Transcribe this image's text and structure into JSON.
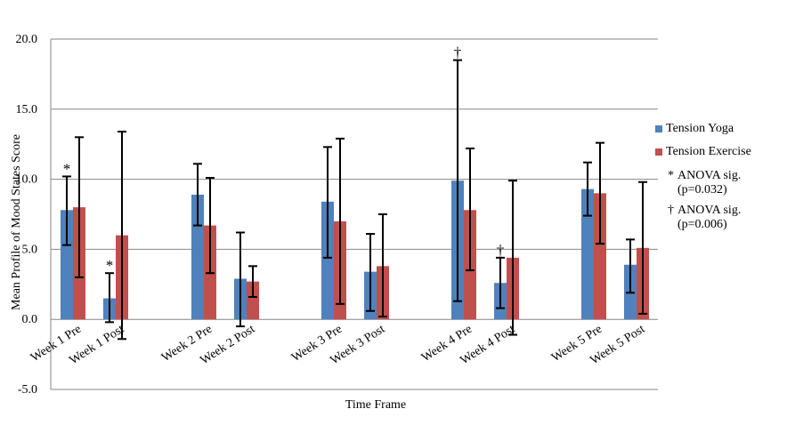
{
  "chart_data": {
    "type": "bar",
    "xlabel": "Time Frame",
    "ylabel": "Mean Profile of Mood States Score",
    "ylim": [
      -5,
      20
    ],
    "ytick_labels": [
      "-5.0",
      "0.0",
      "5.0",
      "10.0",
      "15.0",
      "20.0"
    ],
    "categories": [
      "Week 1 Pre",
      "Week 1 Post",
      "Week 2 Pre",
      "Week 2 Post",
      "Week 3 Pre",
      "Week 3 Post",
      "Week 4 Pre",
      "Week 4 Post",
      "Week 5 Pre",
      "Week 5 Post"
    ],
    "series": [
      {
        "name": "Tension Yoga",
        "color": "#4F81BD",
        "values": [
          7.8,
          1.5,
          8.9,
          2.9,
          8.4,
          3.4,
          9.9,
          2.6,
          9.3,
          3.9
        ],
        "err_low": [
          5.3,
          -0.2,
          6.7,
          -0.5,
          4.4,
          0.6,
          1.3,
          0.8,
          7.4,
          1.9
        ],
        "err_high": [
          10.2,
          3.3,
          11.1,
          6.2,
          12.3,
          6.1,
          18.5,
          4.4,
          11.2,
          5.7
        ]
      },
      {
        "name": "Tension Exercise",
        "color": "#C0504D",
        "values": [
          8.0,
          6.0,
          6.7,
          2.7,
          7.0,
          3.8,
          7.8,
          4.4,
          9.0,
          5.1
        ],
        "err_low": [
          3.0,
          -1.4,
          3.3,
          1.6,
          1.1,
          0.2,
          3.5,
          -1.1,
          5.4,
          0.4
        ],
        "err_high": [
          13.0,
          13.4,
          10.1,
          3.8,
          12.9,
          7.5,
          12.2,
          9.9,
          12.6,
          9.8
        ]
      }
    ],
    "annotations": [
      {
        "text": "*",
        "category": "Week 1 Pre",
        "value": 10.2
      },
      {
        "text": "*",
        "category": "Week 1 Post",
        "value": 3.3
      },
      {
        "text": "†",
        "category": "Week 4 Pre",
        "value": 18.5
      },
      {
        "text": "†",
        "category": "Week 4 Post",
        "value": 4.4
      }
    ],
    "notes": [
      {
        "marker": "*",
        "line1": "ANOVA sig.",
        "line2": "(p=0.032)"
      },
      {
        "marker": "†",
        "line1": "ANOVA sig.",
        "line2": "(p=0.006)"
      }
    ],
    "grid": true,
    "legend_position": "right"
  }
}
